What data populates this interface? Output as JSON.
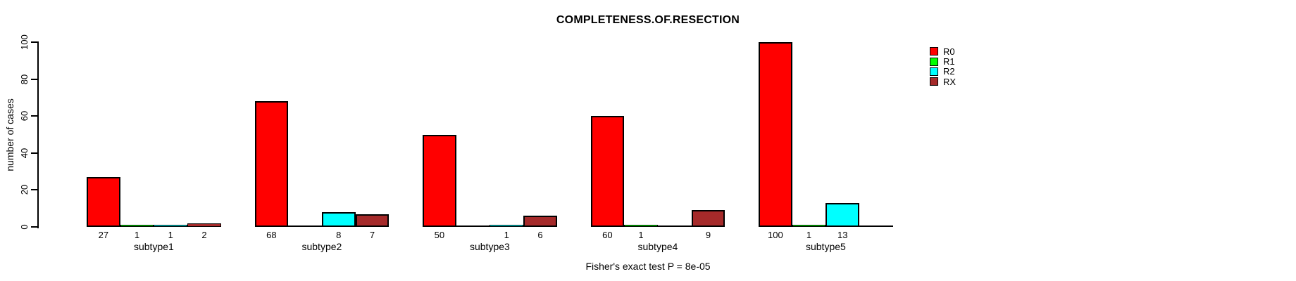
{
  "chart_data": {
    "type": "bar",
    "title": "COMPLETENESS.OF.RESECTION",
    "ylabel": "number of cases",
    "xlabel": "",
    "annotation": "Fisher's exact test P = 8e-05",
    "categories": [
      "subtype1",
      "subtype2",
      "subtype3",
      "subtype4",
      "subtype5"
    ],
    "series": [
      {
        "name": "R0",
        "color": "#FF0000",
        "values": [
          27,
          68,
          50,
          60,
          100
        ]
      },
      {
        "name": "R1",
        "color": "#00FF00",
        "values": [
          1,
          0,
          0,
          1,
          1
        ]
      },
      {
        "name": "R2",
        "color": "#00FFFF",
        "values": [
          1,
          8,
          1,
          0,
          13
        ]
      },
      {
        "name": "RX",
        "color": "#A52A2A",
        "values": [
          2,
          7,
          6,
          9,
          0
        ]
      }
    ],
    "bar_value_labels": [
      [
        "27",
        "1",
        "1",
        "2"
      ],
      [
        "68",
        null,
        "8",
        "7"
      ],
      [
        "50",
        null,
        "1",
        "6"
      ],
      [
        "60",
        "1",
        null,
        "9"
      ],
      [
        "100",
        "1",
        "13",
        null
      ]
    ],
    "yticks": [
      0,
      20,
      40,
      60,
      80,
      100
    ],
    "ylim": [
      0,
      100
    ],
    "legend": {
      "position": "right",
      "entries": [
        "R0",
        "R1",
        "R2",
        "RX"
      ]
    },
    "grid": false,
    "axis_color": "#000000",
    "background_color": "#FFFFFF"
  }
}
